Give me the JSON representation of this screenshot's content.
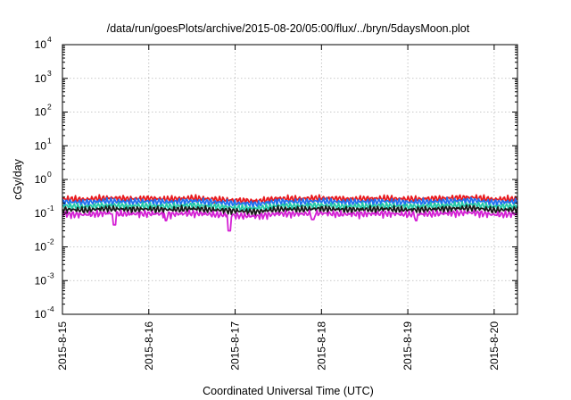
{
  "chart_data": {
    "type": "line",
    "title": "/data/run/goesPlots/archive/2015-08-20/05:00/flux/../bryn/5daysMoon.plot",
    "xlabel": "Coordinated Universal Time (UTC)",
    "ylabel": "cGy/day",
    "yscale": "log",
    "ylim_exp": [
      -4,
      4
    ],
    "y_tick_base": "10",
    "y_ticks_exp": [
      "-4",
      "-3",
      "-2",
      "-1",
      "0",
      "1",
      "2",
      "3",
      "4"
    ],
    "x_ticks": [
      "2015-8-15",
      "2015-8-16",
      "2015-8-17",
      "2015-8-18",
      "2015-8-19",
      "2015-8-20"
    ],
    "xlim_days": [
      0,
      5.27
    ],
    "grid": true,
    "legend": "none",
    "x_days": [
      0,
      0.25,
      0.5,
      0.75,
      1,
      1.25,
      1.5,
      1.75,
      2,
      2.25,
      2.5,
      2.75,
      3,
      3.25,
      3.5,
      3.75,
      4,
      4.25,
      4.5,
      4.75,
      5,
      5.25
    ],
    "base_profile": [
      1.0,
      0.95,
      1.05,
      1.0,
      1.02,
      0.98,
      1.05,
      0.97,
      0.9,
      0.85,
      1.02,
      1.0,
      1.05,
      0.98,
      1.0,
      1.03,
      0.97,
      1.0,
      1.05,
      1.1,
      0.95,
      1.0
    ],
    "series": [
      {
        "color": "#e8191d",
        "level": 0.27
      },
      {
        "color": "#1f6ff0",
        "level": 0.22
      },
      {
        "color": "#22c9a8",
        "level": 0.165
      },
      {
        "color": "#1a1a1a",
        "level": 0.13
      },
      {
        "color": "#d420d4",
        "level": 0.095,
        "dips": [
          {
            "x": 0.6,
            "y": 0.045
          },
          {
            "x": 1.2,
            "y": 0.06
          },
          {
            "x": 1.93,
            "y": 0.03
          },
          {
            "x": 2.9,
            "y": 0.065
          },
          {
            "x": 4.1,
            "y": 0.06
          }
        ]
      }
    ]
  }
}
